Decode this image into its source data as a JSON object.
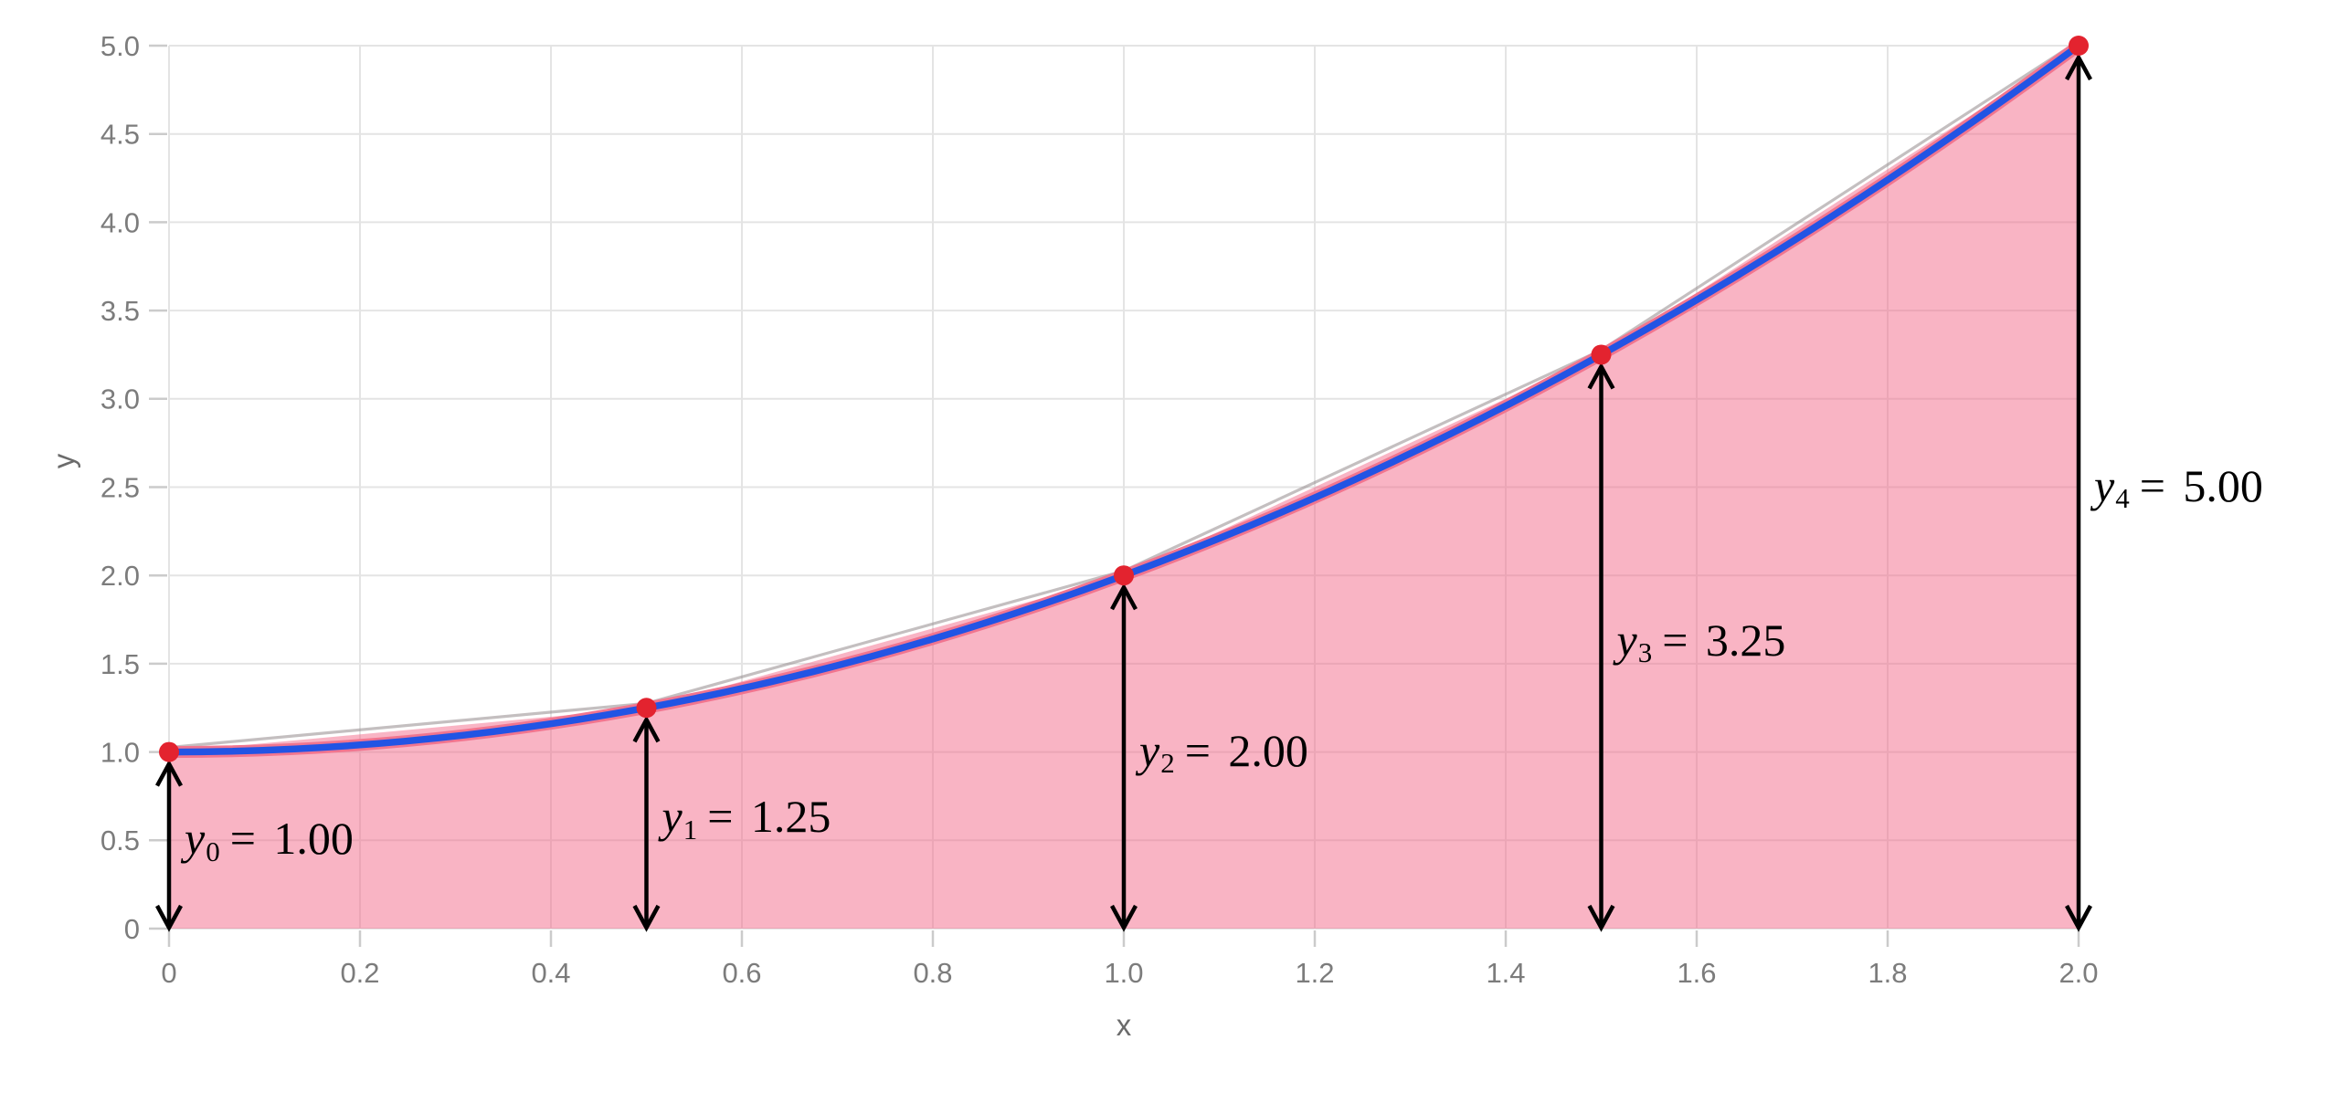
{
  "chart_data": {
    "type": "area",
    "title": "",
    "curve": {
      "function": "y = 1 + x^2",
      "x_range": [
        0,
        2
      ],
      "bezier_control": {
        "x": 1,
        "y": 1
      }
    },
    "points": [
      {
        "x": 0,
        "y": 1.0,
        "annotation": {
          "symbol": "y",
          "subscript": "0",
          "equals_text": "= 1.00"
        }
      },
      {
        "x": 0.5,
        "y": 1.25,
        "annotation": {
          "symbol": "y",
          "subscript": "1",
          "equals_text": "= 1.25"
        }
      },
      {
        "x": 1.0,
        "y": 2.0,
        "annotation": {
          "symbol": "y",
          "subscript": "2",
          "equals_text": "= 2.00"
        }
      },
      {
        "x": 1.5,
        "y": 3.25,
        "annotation": {
          "symbol": "y",
          "subscript": "3",
          "equals_text": "= 3.25"
        }
      },
      {
        "x": 2.0,
        "y": 5.0,
        "annotation": {
          "symbol": "y",
          "subscript": "4",
          "equals_text": "= 5.00"
        }
      }
    ],
    "x_axis": {
      "label": "x",
      "min": 0,
      "max": 2,
      "tick_values": [
        0,
        0.2,
        0.4,
        0.6,
        0.8,
        1.0,
        1.2,
        1.4,
        1.6,
        1.8,
        2.0
      ],
      "tick_labels": [
        "0",
        "0.2",
        "0.4",
        "0.6",
        "0.8",
        "1.0",
        "1.2",
        "1.4",
        "1.6",
        "1.8",
        "2.0"
      ]
    },
    "y_axis": {
      "label": "y",
      "min": 0,
      "max": 5,
      "tick_values": [
        0,
        0.5,
        1.0,
        1.5,
        2.0,
        2.5,
        3.0,
        3.5,
        4.0,
        4.5,
        5.0
      ],
      "tick_labels": [
        "0",
        "0.5",
        "1.0",
        "1.5",
        "2.0",
        "2.5",
        "3.0",
        "3.5",
        "4.0",
        "4.5",
        "5.0"
      ]
    },
    "grid": true,
    "legend": false,
    "colors": {
      "curve_blue": "#2254e4",
      "point_red": "#e3232f",
      "area_fill": "rgba(242,95,130,0.47)",
      "area_edge_pink": "#f1758f",
      "chord_gray": "rgba(148,138,140,0.55)",
      "arrow_black": "#000000",
      "grid": "#e4e4e4",
      "tick_mark": "#cbcbcb",
      "tick_text": "#7c7c7c",
      "axis_label_text": "#6b6b6b",
      "annotation_text": "#000000",
      "background": "#ffffff"
    }
  }
}
